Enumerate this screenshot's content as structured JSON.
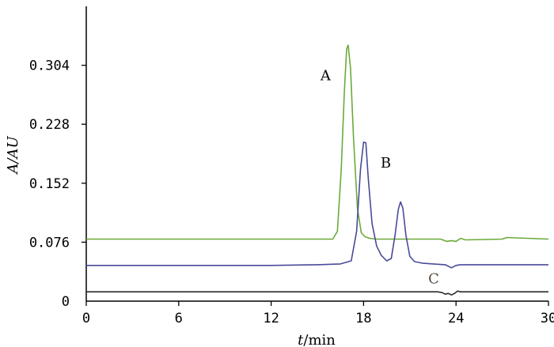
{
  "chart_data": {
    "type": "line",
    "xlabel": {
      "italic": "t",
      "rest": "/min"
    },
    "ylabel": "A/AU",
    "xlim": [
      0,
      30
    ],
    "ylim": [
      0,
      0.38
    ],
    "x_ticks": [
      0,
      6,
      12,
      18,
      24,
      30
    ],
    "x_tick_labels": [
      "0",
      "6",
      "12",
      "18",
      "24",
      "30"
    ],
    "y_ticks": [
      0.076,
      0.152,
      0.228,
      0.304
    ],
    "y_tick_labels": [
      "0.076",
      "0.152",
      "0.228",
      "0.304"
    ],
    "y_zero_label": "0",
    "grid": false,
    "series": [
      {
        "name": "A",
        "color": "#6aaa3a",
        "label_at": [
          15.2,
          0.285
        ],
        "x": [
          0,
          15.0,
          16.0,
          16.3,
          16.55,
          16.75,
          16.9,
          17.0,
          17.15,
          17.35,
          17.6,
          17.85,
          18.1,
          18.4,
          18.8,
          19.5,
          20.5,
          23.0,
          23.4,
          23.7,
          24.0,
          24.3,
          24.6,
          27.0,
          27.3,
          30
        ],
        "values": [
          0.08,
          0.08,
          0.08,
          0.09,
          0.17,
          0.27,
          0.325,
          0.33,
          0.3,
          0.21,
          0.12,
          0.088,
          0.083,
          0.081,
          0.08,
          0.08,
          0.08,
          0.08,
          0.077,
          0.078,
          0.077,
          0.081,
          0.079,
          0.08,
          0.082,
          0.08
        ]
      },
      {
        "name": "B",
        "color": "#4a4a9a",
        "label_at": [
          19.1,
          0.172
        ],
        "x": [
          0,
          8.0,
          12.0,
          15.0,
          16.5,
          17.2,
          17.55,
          17.8,
          18.0,
          18.15,
          18.3,
          18.55,
          18.85,
          19.15,
          19.5,
          19.8,
          20.05,
          20.25,
          20.4,
          20.55,
          20.75,
          21.0,
          21.3,
          21.8,
          22.5,
          23.3,
          23.7,
          24.0,
          24.3,
          25.0,
          27.5,
          30
        ],
        "values": [
          0.046,
          0.046,
          0.046,
          0.047,
          0.048,
          0.052,
          0.09,
          0.17,
          0.205,
          0.204,
          0.16,
          0.1,
          0.071,
          0.059,
          0.052,
          0.055,
          0.086,
          0.118,
          0.128,
          0.12,
          0.085,
          0.058,
          0.051,
          0.049,
          0.048,
          0.047,
          0.043,
          0.046,
          0.047,
          0.047,
          0.047,
          0.047
        ]
      },
      {
        "name": "C",
        "color": "#2b2b2b",
        "label_at": [
          22.2,
          0.023
        ],
        "x": [
          0,
          10.0,
          20.0,
          22.8,
          23.1,
          23.3,
          23.5,
          23.7,
          23.9,
          24.1,
          24.3,
          24.6,
          25.0,
          30
        ],
        "values": [
          0.012,
          0.012,
          0.012,
          0.012,
          0.011,
          0.009,
          0.01,
          0.008,
          0.01,
          0.013,
          0.012,
          0.012,
          0.012,
          0.012
        ]
      }
    ]
  }
}
